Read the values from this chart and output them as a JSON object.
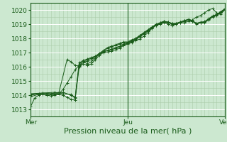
{
  "background_color": "#cce8d0",
  "plot_bg_color": "#cce8d0",
  "grid_color_major": "#aaccaa",
  "grid_color_white": "#ffffff",
  "line_color": "#1a5c1a",
  "ylim": [
    1012.5,
    1020.5
  ],
  "yticks": [
    1013,
    1014,
    1015,
    1016,
    1017,
    1018,
    1019,
    1020
  ],
  "xlabel": "Pression niveau de la mer( hPa )",
  "xlabel_fontsize": 8,
  "tick_fontsize": 6.5,
  "day_labels": [
    "Mer",
    "Jeu",
    "Ven"
  ],
  "day_positions": [
    0,
    48,
    96
  ],
  "total_hours": 96,
  "series": [
    [
      0,
      1013.2,
      2,
      1013.8,
      4,
      1014.0,
      6,
      1014.05,
      8,
      1014.0,
      10,
      1013.95,
      12,
      1014.0,
      14,
      1014.1,
      16,
      1014.4,
      18,
      1014.85,
      20,
      1015.3,
      22,
      1015.8,
      24,
      1016.1,
      26,
      1016.3,
      28,
      1016.4,
      30,
      1016.5,
      32,
      1016.7,
      34,
      1016.9,
      36,
      1017.05,
      38,
      1017.15,
      40,
      1017.25,
      42,
      1017.35,
      44,
      1017.45,
      46,
      1017.55,
      48,
      1017.65,
      50,
      1017.75,
      52,
      1017.85,
      54,
      1017.95,
      56,
      1018.15,
      58,
      1018.4,
      60,
      1018.7,
      62,
      1018.95,
      64,
      1019.1,
      66,
      1019.2,
      68,
      1019.1,
      70,
      1019.0,
      72,
      1019.0,
      74,
      1019.1,
      76,
      1019.1,
      78,
      1019.2,
      80,
      1019.3,
      82,
      1019.5,
      84,
      1019.6,
      86,
      1019.8,
      88,
      1020.0,
      90,
      1020.1,
      92,
      1019.8,
      94,
      1019.7,
      96,
      1020.0
    ],
    [
      0,
      1013.9,
      4,
      1014.05,
      8,
      1014.0,
      12,
      1014.05,
      16,
      1014.0,
      18,
      1013.85,
      20,
      1013.7,
      22,
      1013.65,
      24,
      1016.0,
      26,
      1016.2,
      28,
      1016.1,
      30,
      1016.2,
      32,
      1016.5,
      34,
      1016.8,
      36,
      1017.0,
      38,
      1017.05,
      40,
      1017.1,
      42,
      1017.2,
      44,
      1017.3,
      46,
      1017.5,
      48,
      1017.6,
      50,
      1017.7,
      52,
      1017.9,
      54,
      1018.1,
      56,
      1018.3,
      58,
      1018.5,
      60,
      1018.7,
      62,
      1018.9,
      64,
      1019.0,
      66,
      1019.1,
      68,
      1019.0,
      70,
      1018.9,
      72,
      1019.0,
      74,
      1019.1,
      76,
      1019.2,
      78,
      1019.3,
      80,
      1019.2,
      82,
      1019.0,
      84,
      1019.1,
      86,
      1019.1,
      88,
      1019.3,
      90,
      1019.5,
      92,
      1019.6,
      94,
      1019.8,
      96,
      1020.0
    ],
    [
      0,
      1014.0,
      4,
      1014.1,
      8,
      1014.1,
      12,
      1014.1,
      16,
      1014.2,
      20,
      1014.0,
      22,
      1013.8,
      24,
      1016.3,
      26,
      1016.4,
      28,
      1016.2,
      30,
      1016.35,
      32,
      1016.6,
      34,
      1016.9,
      36,
      1017.05,
      38,
      1017.15,
      40,
      1017.2,
      42,
      1017.3,
      44,
      1017.4,
      46,
      1017.6,
      48,
      1017.7,
      50,
      1017.8,
      52,
      1018.0,
      54,
      1018.2,
      56,
      1018.4,
      58,
      1018.6,
      60,
      1018.8,
      62,
      1018.9,
      64,
      1019.05,
      66,
      1019.15,
      68,
      1019.1,
      70,
      1019.0,
      72,
      1019.05,
      74,
      1019.15,
      76,
      1019.25,
      78,
      1019.35,
      80,
      1019.25,
      82,
      1019.05,
      84,
      1019.15,
      86,
      1019.15,
      88,
      1019.35,
      90,
      1019.55,
      92,
      1019.65,
      94,
      1019.85,
      96,
      1020.05
    ],
    [
      0,
      1014.05,
      6,
      1014.15,
      10,
      1014.1,
      14,
      1014.2,
      18,
      1016.5,
      20,
      1016.35,
      22,
      1016.1,
      24,
      1016.05,
      26,
      1016.3,
      28,
      1016.5,
      30,
      1016.6,
      32,
      1016.7,
      34,
      1016.9,
      36,
      1017.1,
      38,
      1017.3,
      40,
      1017.4,
      42,
      1017.5,
      44,
      1017.6,
      46,
      1017.7,
      48,
      1017.7,
      50,
      1017.85,
      52,
      1017.95,
      54,
      1018.15,
      56,
      1018.35,
      58,
      1018.55,
      60,
      1018.75,
      62,
      1018.95,
      64,
      1019.05,
      66,
      1019.2,
      68,
      1019.15,
      70,
      1019.05,
      72,
      1019.05,
      74,
      1019.15,
      76,
      1019.25,
      78,
      1019.3,
      80,
      1019.2,
      82,
      1019.05,
      84,
      1019.1,
      86,
      1019.15,
      88,
      1019.35,
      90,
      1019.55,
      92,
      1019.65,
      94,
      1019.85,
      96,
      1020.05
    ],
    [
      0,
      1014.1,
      6,
      1014.15,
      12,
      1014.2,
      16,
      1014.1,
      20,
      1014.05,
      22,
      1013.85,
      24,
      1016.15,
      26,
      1016.45,
      28,
      1016.55,
      30,
      1016.65,
      32,
      1016.75,
      34,
      1016.95,
      36,
      1017.15,
      38,
      1017.35,
      40,
      1017.45,
      42,
      1017.55,
      44,
      1017.65,
      46,
      1017.75,
      48,
      1017.75,
      50,
      1017.9,
      52,
      1018.0,
      54,
      1018.2,
      56,
      1018.4,
      58,
      1018.6,
      60,
      1018.8,
      62,
      1019.0,
      64,
      1019.1,
      66,
      1019.2,
      68,
      1019.15,
      70,
      1019.05,
      72,
      1019.05,
      74,
      1019.15,
      76,
      1019.25,
      78,
      1019.3,
      80,
      1019.22,
      82,
      1019.06,
      84,
      1019.12,
      86,
      1019.18,
      88,
      1019.38,
      90,
      1019.58,
      92,
      1019.68,
      94,
      1019.88,
      96,
      1020.08
    ]
  ]
}
